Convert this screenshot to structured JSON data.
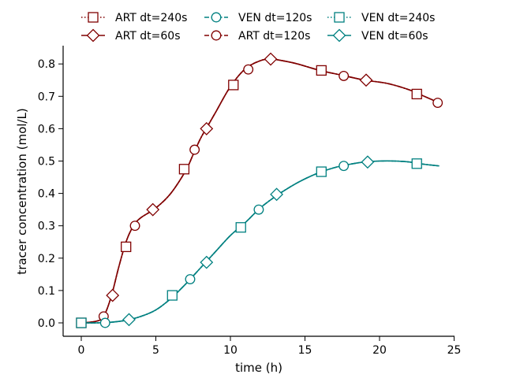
{
  "chart_data": {
    "type": "line",
    "title": "",
    "xlabel": "time (h)",
    "ylabel": "tracer concentration (mol/L)",
    "xlim": [
      -1.2,
      25.2
    ],
    "ylim": [
      -0.04,
      0.86
    ],
    "xticks": [
      0,
      5,
      10,
      15,
      20,
      25
    ],
    "yticks": [
      0.0,
      0.1,
      0.2,
      0.3,
      0.4,
      0.5,
      0.6,
      0.7,
      0.8
    ],
    "xtick_labels": [
      "0",
      "5",
      "10",
      "15",
      "20",
      "25"
    ],
    "ytick_labels": [
      "0.0",
      "0.1",
      "0.2",
      "0.3",
      "0.4",
      "0.5",
      "0.6",
      "0.7",
      "0.8"
    ],
    "grid": false,
    "legend_position": "top-center",
    "colors": {
      "ART": "#800000",
      "VEN": "#008080"
    },
    "curves": {
      "ART": {
        "x": [
          0,
          1,
          1.5,
          2,
          2.5,
          3,
          3.5,
          4,
          5,
          6,
          7,
          7.5,
          8,
          8.5,
          9,
          10,
          11,
          12,
          12.7,
          13.5,
          14.5,
          16,
          17.5,
          19,
          20.5,
          22,
          23,
          24
        ],
        "y": [
          0.0,
          0.005,
          0.02,
          0.08,
          0.17,
          0.25,
          0.3,
          0.325,
          0.355,
          0.4,
          0.47,
          0.52,
          0.57,
          0.61,
          0.65,
          0.73,
          0.785,
          0.81,
          0.815,
          0.81,
          0.8,
          0.78,
          0.765,
          0.75,
          0.74,
          0.72,
          0.7,
          0.68
        ]
      },
      "VEN": {
        "x": [
          0,
          1,
          2,
          3,
          4,
          5,
          6,
          7,
          8,
          9,
          10,
          11,
          12,
          13,
          14,
          15,
          16,
          17,
          18,
          19,
          20,
          21,
          22,
          23,
          24
        ],
        "y": [
          0.0,
          0.0,
          0.002,
          0.008,
          0.02,
          0.04,
          0.075,
          0.12,
          0.17,
          0.22,
          0.27,
          0.31,
          0.355,
          0.39,
          0.42,
          0.445,
          0.465,
          0.48,
          0.49,
          0.497,
          0.5,
          0.5,
          0.497,
          0.49,
          0.485
        ]
      }
    },
    "series": [
      {
        "name": "ART dt=240s",
        "group": "ART",
        "dash": "dot",
        "marker": "square",
        "markers": [
          [
            0,
            0.0
          ],
          [
            3,
            0.235
          ],
          [
            6.9,
            0.475
          ],
          [
            10.2,
            0.735
          ],
          [
            16.1,
            0.78
          ],
          [
            22.5,
            0.707
          ]
        ]
      },
      {
        "name": "ART dt=120s",
        "group": "ART",
        "dash": "dashdot",
        "marker": "circle",
        "markers": [
          [
            1.5,
            0.02
          ],
          [
            3.6,
            0.3
          ],
          [
            7.6,
            0.535
          ],
          [
            11.2,
            0.783
          ],
          [
            17.6,
            0.763
          ],
          [
            23.9,
            0.68
          ]
        ]
      },
      {
        "name": "ART dt=60s",
        "group": "ART",
        "dash": "solid",
        "marker": "diamond",
        "markers": [
          [
            2.1,
            0.085
          ],
          [
            4.8,
            0.35
          ],
          [
            8.4,
            0.6
          ],
          [
            12.7,
            0.815
          ],
          [
            19.1,
            0.75
          ]
        ]
      },
      {
        "name": "VEN dt=240s",
        "group": "VEN",
        "dash": "dot",
        "marker": "square",
        "markers": [
          [
            0,
            0.0
          ],
          [
            6.1,
            0.085
          ],
          [
            10.7,
            0.295
          ],
          [
            16.1,
            0.467
          ],
          [
            22.5,
            0.492
          ]
        ]
      },
      {
        "name": "VEN dt=120s",
        "group": "VEN",
        "dash": "dashdot",
        "marker": "circle",
        "markers": [
          [
            1.6,
            0.0
          ],
          [
            7.3,
            0.135
          ],
          [
            11.9,
            0.35
          ],
          [
            17.6,
            0.485
          ]
        ]
      },
      {
        "name": "VEN dt=60s",
        "group": "VEN",
        "dash": "solid",
        "marker": "diamond",
        "markers": [
          [
            3.2,
            0.01
          ],
          [
            8.4,
            0.187
          ],
          [
            13.1,
            0.397
          ],
          [
            19.2,
            0.497
          ]
        ]
      }
    ],
    "legend_order": [
      0,
      2,
      4,
      1,
      3,
      5
    ]
  }
}
